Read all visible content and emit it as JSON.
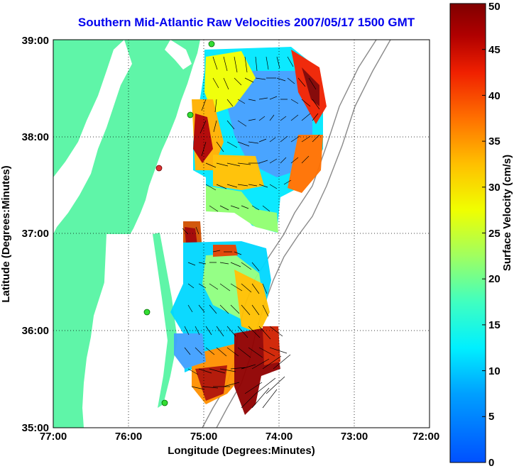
{
  "title": "Southern Mid-Atlantic Raw Velocities 2007/05/17 1500 GMT",
  "xlabel": "Longitude (Degrees:Minutes)",
  "ylabel": "Latitude (Degrees:Minutes)",
  "colorbar_label": "Surface Velocity (cm/s)",
  "colors": {
    "land": "#5ff5a8",
    "title": "#0000ee",
    "station": "#33dd33",
    "station_alt": "#dd3333"
  },
  "chart_data": {
    "type": "heatmap",
    "title": "Southern Mid-Atlantic Raw Velocities 2007/05/17 1500 GMT",
    "xlabel": "Longitude (Degrees:Minutes)",
    "ylabel": "Latitude (Degrees:Minutes)",
    "x_ticks": [
      {
        "value": -77,
        "label": "77:00"
      },
      {
        "value": -76,
        "label": "76:00"
      },
      {
        "value": -75,
        "label": "75:00"
      },
      {
        "value": -74,
        "label": "74:00"
      },
      {
        "value": -73,
        "label": "73:00"
      },
      {
        "value": -72,
        "label": "72:00"
      }
    ],
    "y_ticks": [
      {
        "value": 35,
        "label": "35:00"
      },
      {
        "value": 36,
        "label": "36:00"
      },
      {
        "value": 37,
        "label": "37:00"
      },
      {
        "value": 38,
        "label": "38:00"
      },
      {
        "value": 39,
        "label": "39:00"
      }
    ],
    "xlim": [
      -77,
      -72
    ],
    "ylim": [
      35,
      39
    ],
    "grid": true,
    "colorbar": {
      "label": "Surface Velocity (cm/s)",
      "range": [
        0,
        50
      ],
      "ticks": [
        "0",
        "5",
        "10",
        "15",
        "20",
        "25",
        "30",
        "35",
        "40",
        "45",
        "50"
      ]
    },
    "stations": [
      {
        "lon": -74.9,
        "lat": 39.0,
        "color": "green"
      },
      {
        "lon": -75.1,
        "lat": 38.23,
        "color": "green"
      },
      {
        "lon": -75.55,
        "lat": 37.7,
        "color": "red"
      },
      {
        "lon": -75.65,
        "lat": 36.2,
        "color": "green"
      },
      {
        "lon": -75.5,
        "lat": 35.25,
        "color": "green"
      }
    ]
  }
}
